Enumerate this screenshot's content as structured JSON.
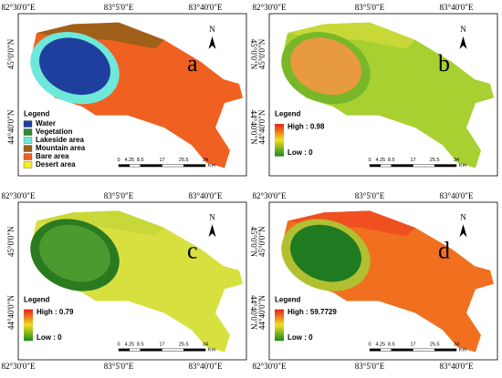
{
  "lon_labels": [
    "82°30'0\"E",
    "83°5'0\"E",
    "83°40'0\"E"
  ],
  "lat_labels": [
    "45°0'0\"N",
    "44°40'0\"N"
  ],
  "north": "N",
  "scale_labels": [
    "0",
    "4.25",
    "8.5",
    "17",
    "25.5",
    "34"
  ],
  "scale_unit": "Km",
  "panels": [
    {
      "letter": "a",
      "legend": "Legend",
      "classes": [
        {
          "name": "Water",
          "color": "#1f3f9e"
        },
        {
          "name": "Vegetation",
          "color": "#2e8b3a"
        },
        {
          "name": "Lakeside area",
          "color": "#6ee8d8"
        },
        {
          "name": "Mountain area",
          "color": "#a0601a"
        },
        {
          "name": "Bare area",
          "color": "#f06020"
        },
        {
          "name": "Desert area",
          "color": "#f5f020"
        }
      ]
    },
    {
      "letter": "b",
      "legend": "Legend",
      "high": "High : 0.98",
      "low": "Low : 0"
    },
    {
      "letter": "c",
      "legend": "Legend",
      "high": "High : 0.79",
      "low": "Low : 0"
    },
    {
      "letter": "d",
      "legend": "Legend",
      "high": "High : 59.7729",
      "low": "Low : 0"
    }
  ]
}
